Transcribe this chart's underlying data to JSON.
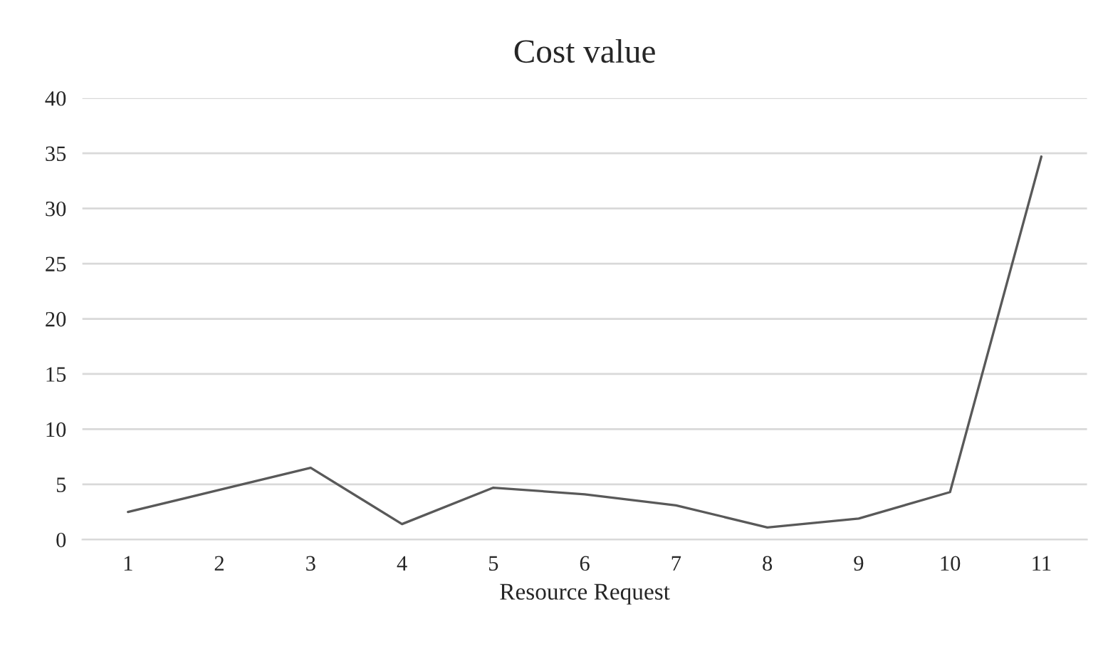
{
  "chart_data": {
    "type": "line",
    "title": "Cost value",
    "xlabel": "Resource Request",
    "categories": [
      "1",
      "2",
      "3",
      "4",
      "5",
      "6",
      "7",
      "8",
      "9",
      "10",
      "11"
    ],
    "series": [
      {
        "color": "#595959",
        "values": [
          2.5,
          4.5,
          6.5,
          1.4,
          4.7,
          4.1,
          3.1,
          1.1,
          1.9,
          4.3,
          34.7
        ]
      }
    ],
    "ylim": [
      0,
      40
    ],
    "yticks": [
      0,
      5,
      10,
      15,
      20,
      25,
      30,
      35,
      40
    ],
    "grid": "y",
    "marker": "none",
    "line_style": "solid"
  }
}
